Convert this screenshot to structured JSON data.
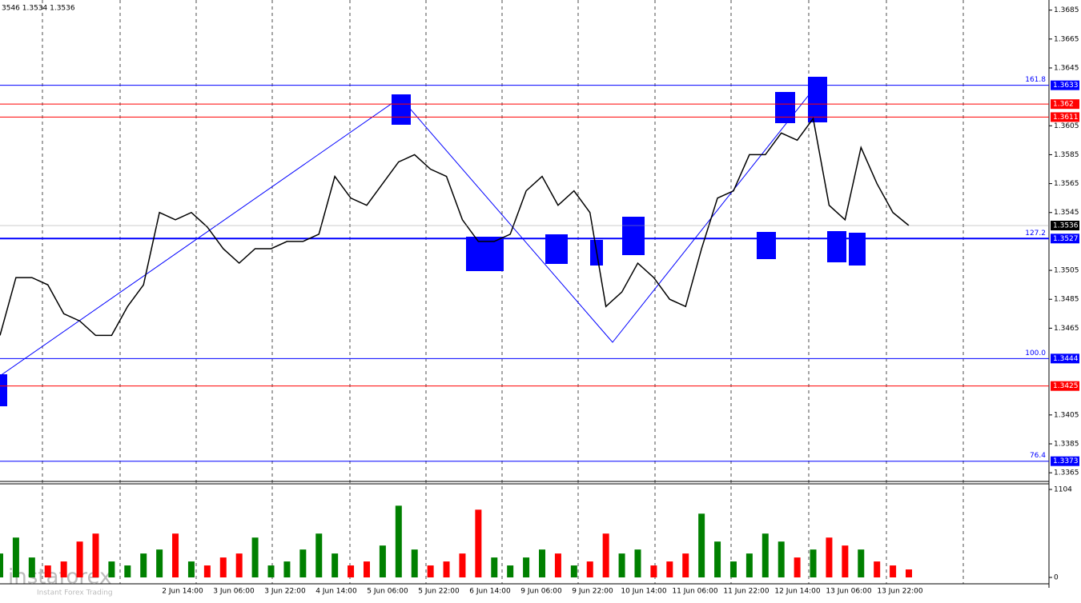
{
  "chart_data": {
    "type": "line",
    "ohlc_text": "3546 1.3534 1.3536",
    "ylim": [
      1.3359,
      1.3692
    ],
    "yticks": [
      1.3685,
      1.3665,
      1.3645,
      1.3605,
      1.3585,
      1.3565,
      1.3545,
      1.3505,
      1.3485,
      1.3465,
      1.3405,
      1.3385,
      1.3365
    ],
    "color": "#000000",
    "values": [
      1.346,
      1.35,
      1.35,
      1.3495,
      1.3475,
      1.347,
      1.346,
      1.346,
      1.348,
      1.3495,
      1.3545,
      1.354,
      1.3545,
      1.3535,
      1.352,
      1.351,
      1.352,
      1.352,
      1.3525,
      1.3525,
      1.353,
      1.357,
      1.3555,
      1.355,
      1.3565,
      1.358,
      1.3585,
      1.3575,
      1.357,
      1.354,
      1.3525,
      1.3525,
      1.353,
      1.356,
      1.357,
      1.355,
      1.356,
      1.3545,
      1.348,
      1.349,
      1.351,
      1.35,
      1.3485,
      1.348,
      1.352,
      1.3555,
      1.356,
      1.3585,
      1.3585,
      1.36,
      1.3595,
      1.361,
      1.355,
      1.354,
      1.359,
      1.3565,
      1.3545,
      1.3536
    ],
    "current_price": 1.3536,
    "levels": [
      {
        "value": 1.3633,
        "color": "#0000ff",
        "fib": "161.8"
      },
      {
        "value": 1.362,
        "color": "#ff0000"
      },
      {
        "value": 1.3611,
        "color": "#ff0000"
      },
      {
        "value": 1.3527,
        "color": "#0000ff",
        "fib": "127.2"
      },
      {
        "value": 1.3444,
        "color": "#0000ff",
        "fib": "100.0"
      },
      {
        "value": 1.3425,
        "color": "#ff0000"
      },
      {
        "value": 1.3373,
        "color": "#0000ff",
        "fib": "76.4"
      }
    ],
    "volume": {
      "ylim": [
        0,
        1104
      ],
      "yticks": [
        1104,
        0
      ],
      "up_color": "#008000",
      "down_color": "#ff0000",
      "values": [
        300,
        500,
        250,
        150,
        200,
        450,
        550,
        200,
        150,
        300,
        350,
        550,
        200,
        150,
        250,
        300,
        500,
        150,
        200,
        350,
        550,
        300,
        150,
        200,
        400,
        900,
        350,
        150,
        200,
        300,
        850,
        250,
        150,
        250,
        350,
        300,
        150,
        200,
        550,
        300,
        350,
        150,
        200,
        300,
        800,
        450,
        200,
        300,
        550,
        450,
        250,
        350,
        500,
        400,
        350,
        200,
        150,
        100
      ]
    },
    "x_labels": [
      "2 Jun 14:00",
      "3 Jun 06:00",
      "3 Jun 22:00",
      "4 Jun 14:00",
      "5 Jun 06:00",
      "5 Jun 22:00",
      "6 Jun 14:00",
      "9 Jun 06:00",
      "9 Jun 22:00",
      "10 Jun 14:00",
      "11 Jun 06:00",
      "11 Jun 22:00",
      "12 Jun 14:00",
      "13 Jun 06:00",
      "13 Jun 22:00"
    ],
    "watermark": {
      "brand": "instaforex",
      "tagline": "Instant Forex Trading"
    }
  }
}
